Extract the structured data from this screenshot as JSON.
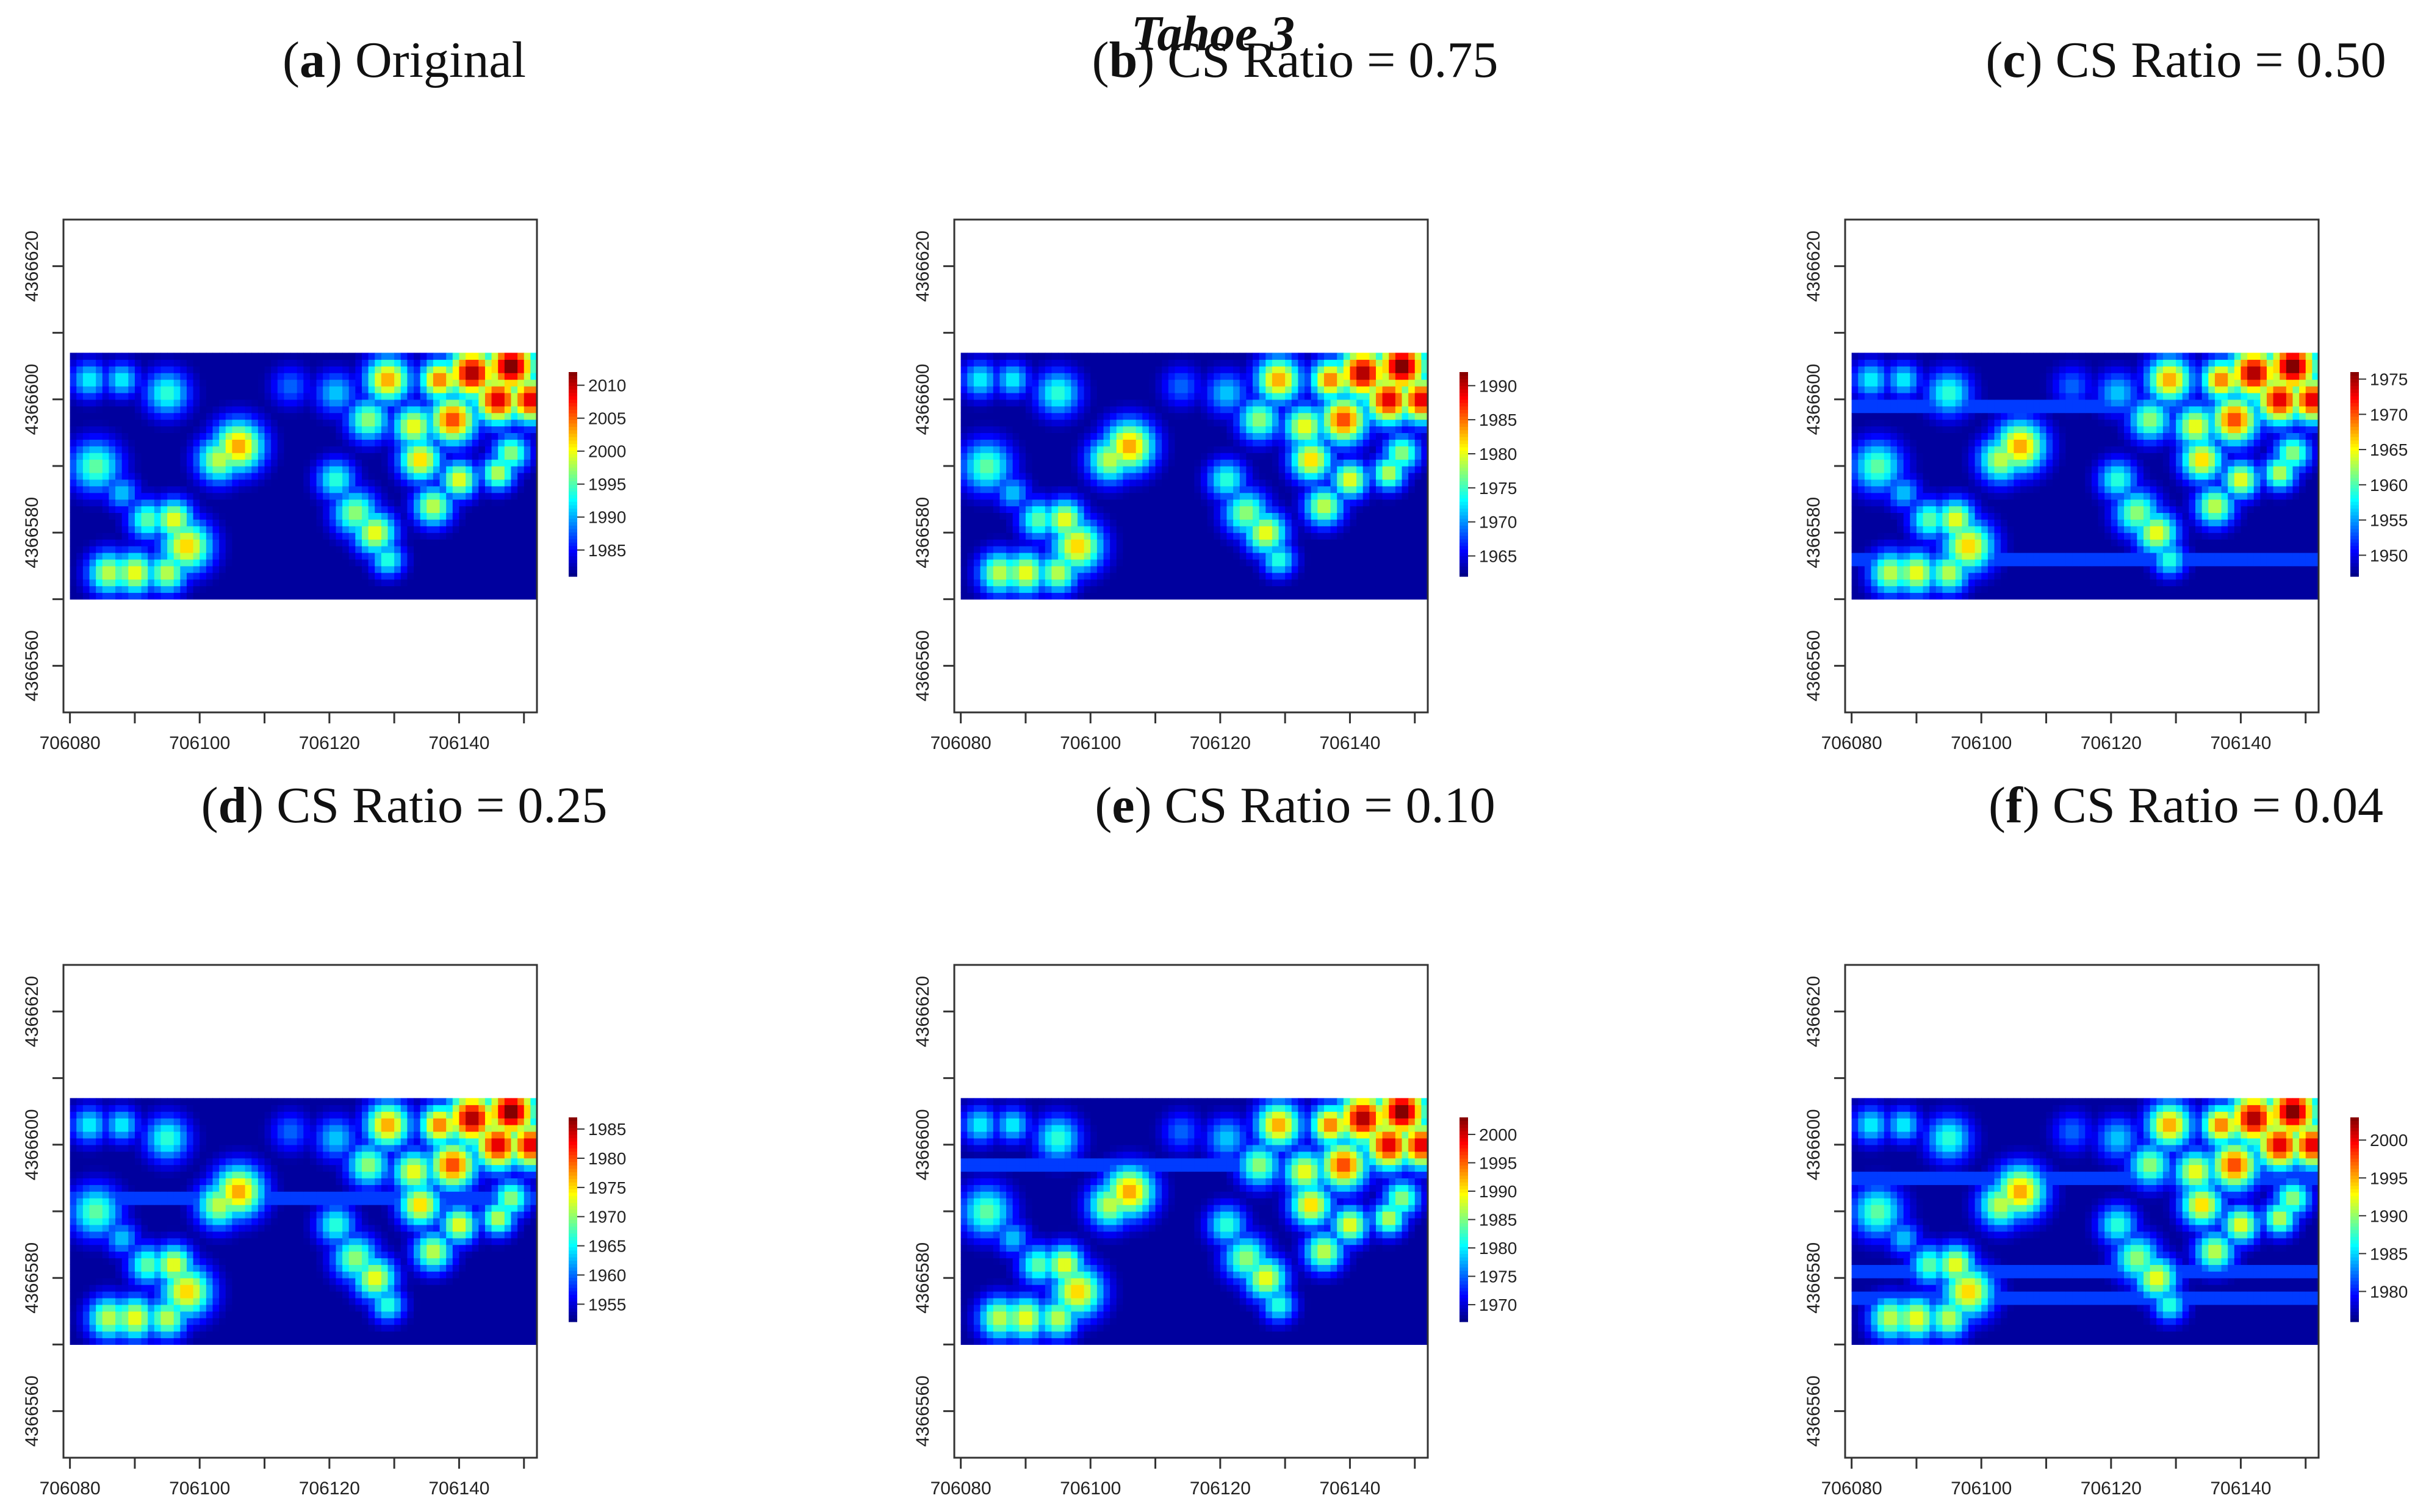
{
  "figure_title": "Tahoe 3",
  "colors": {
    "low": "#0000ff",
    "high": "#ff0000",
    "frame": "#333333"
  },
  "chart_data": [
    {
      "type": "heatmap",
      "label": "a",
      "title": "Original",
      "xlim": [
        706079,
        706152
      ],
      "ylim": [
        4366553,
        4366627
      ],
      "data_xlim": [
        706080,
        706152
      ],
      "data_ylim": [
        4366570,
        4366607
      ],
      "xticks": [
        706080,
        706100,
        706120,
        706140
      ],
      "yticks": [
        4366560,
        4366580,
        4366600,
        4366620
      ],
      "colorbar_ticks": [
        1985,
        1990,
        1995,
        2000,
        2005,
        2010
      ],
      "colorbar_range": [
        1981,
        2012
      ],
      "stripes": []
    },
    {
      "type": "heatmap",
      "label": "b",
      "title": "CS Ratio = 0.75",
      "xlim": [
        706079,
        706152
      ],
      "ylim": [
        4366553,
        4366627
      ],
      "data_xlim": [
        706080,
        706152
      ],
      "data_ylim": [
        4366570,
        4366607
      ],
      "xticks": [
        706080,
        706100,
        706120,
        706140
      ],
      "yticks": [
        4366560,
        4366580,
        4366600,
        4366620
      ],
      "colorbar_ticks": [
        1965,
        1970,
        1975,
        1980,
        1985,
        1990
      ],
      "colorbar_range": [
        1962,
        1992
      ],
      "stripes": []
    },
    {
      "type": "heatmap",
      "label": "c",
      "title": "CS Ratio = 0.50",
      "xlim": [
        706079,
        706152
      ],
      "ylim": [
        4366553,
        4366627
      ],
      "data_xlim": [
        706080,
        706152
      ],
      "data_ylim": [
        4366570,
        4366607
      ],
      "xticks": [
        706080,
        706100,
        706120,
        706140
      ],
      "yticks": [
        4366560,
        4366580,
        4366600,
        4366620
      ],
      "colorbar_ticks": [
        1950,
        1955,
        1960,
        1965,
        1970,
        1975
      ],
      "colorbar_range": [
        1947,
        1976
      ],
      "stripes": [
        4366599,
        4366576
      ]
    },
    {
      "type": "heatmap",
      "label": "d",
      "title": "CS Ratio = 0.25",
      "xlim": [
        706079,
        706152
      ],
      "ylim": [
        4366553,
        4366627
      ],
      "data_xlim": [
        706080,
        706152
      ],
      "data_ylim": [
        4366570,
        4366607
      ],
      "xticks": [
        706080,
        706100,
        706120,
        706140
      ],
      "yticks": [
        4366560,
        4366580,
        4366600,
        4366620
      ],
      "colorbar_ticks": [
        1955,
        1960,
        1965,
        1970,
        1975,
        1980,
        1985
      ],
      "colorbar_range": [
        1952,
        1987
      ],
      "stripes": [
        4366592
      ]
    },
    {
      "type": "heatmap",
      "label": "e",
      "title": "CS Ratio = 0.10",
      "xlim": [
        706079,
        706152
      ],
      "ylim": [
        4366553,
        4366627
      ],
      "data_xlim": [
        706080,
        706152
      ],
      "data_ylim": [
        4366570,
        4366607
      ],
      "xticks": [
        706080,
        706100,
        706120,
        706140
      ],
      "yticks": [
        4366560,
        4366580,
        4366600,
        4366620
      ],
      "colorbar_ticks": [
        1970,
        1975,
        1980,
        1985,
        1990,
        1995,
        2000
      ],
      "colorbar_range": [
        1967,
        2003
      ],
      "stripes": [
        4366597
      ]
    },
    {
      "type": "heatmap",
      "label": "f",
      "title": "CS Ratio = 0.04",
      "xlim": [
        706079,
        706152
      ],
      "ylim": [
        4366553,
        4366627
      ],
      "data_xlim": [
        706080,
        706152
      ],
      "data_ylim": [
        4366570,
        4366607
      ],
      "xticks": [
        706080,
        706100,
        706120,
        706140
      ],
      "yticks": [
        4366560,
        4366580,
        4366600,
        4366620
      ],
      "colorbar_ticks": [
        1980,
        1985,
        1990,
        1995,
        2000
      ],
      "colorbar_range": [
        1976,
        2003
      ],
      "stripes": [
        4366595,
        4366581,
        4366577
      ]
    }
  ],
  "hotspots": [
    [
      706083,
      4366603,
      1.3,
      0.35
    ],
    [
      706088,
      4366603,
      1.2,
      0.35
    ],
    [
      706095,
      4366601,
      1.6,
      0.4
    ],
    [
      706084,
      4366590,
      1.8,
      0.45
    ],
    [
      706088,
      4366586,
      1.2,
      0.3
    ],
    [
      706092,
      4366582,
      1.4,
      0.45
    ],
    [
      706096,
      4366582,
      1.4,
      0.6
    ],
    [
      706098,
      4366578,
      1.8,
      0.65
    ],
    [
      706086,
      4366574,
      1.5,
      0.55
    ],
    [
      706090,
      4366574,
      1.5,
      0.6
    ],
    [
      706095,
      4366574,
      1.4,
      0.55
    ],
    [
      706103,
      4366591,
      1.6,
      0.55
    ],
    [
      706106,
      4366593,
      1.8,
      0.7
    ],
    [
      706114,
      4366602,
      1.4,
      0.2
    ],
    [
      706121,
      4366601,
      1.5,
      0.3
    ],
    [
      706121,
      4366588,
      1.4,
      0.4
    ],
    [
      706124,
      4366583,
      1.6,
      0.5
    ],
    [
      706127,
      4366580,
      1.5,
      0.6
    ],
    [
      706129,
      4366576,
      1.2,
      0.4
    ],
    [
      706126,
      4366597,
      1.5,
      0.5
    ],
    [
      706129,
      4366603,
      1.6,
      0.7
    ],
    [
      706133,
      4366596,
      1.5,
      0.6
    ],
    [
      706134,
      4366591,
      1.5,
      0.65
    ],
    [
      706137,
      4366603,
      1.4,
      0.75
    ],
    [
      706139,
      4366597,
      1.7,
      0.8
    ],
    [
      706142,
      4366604,
      1.8,
      0.95
    ],
    [
      706146,
      4366600,
      1.7,
      0.9
    ],
    [
      706148,
      4366605,
      1.8,
      1.0
    ],
    [
      706151,
      4366600,
      1.6,
      0.9
    ],
    [
      706140,
      4366588,
      1.3,
      0.6
    ],
    [
      706146,
      4366589,
      1.2,
      0.55
    ],
    [
      706136,
      4366584,
      1.4,
      0.55
    ],
    [
      706148,
      4366592,
      1.3,
      0.5
    ]
  ]
}
